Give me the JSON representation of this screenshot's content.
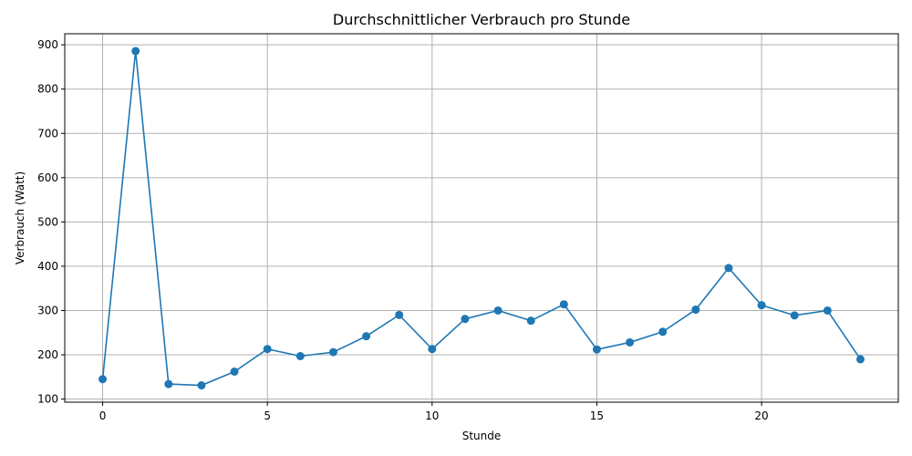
{
  "chart_data": {
    "type": "line",
    "title": "Durchschnittlicher Verbrauch pro Stunde",
    "xlabel": "Stunde",
    "ylabel": "Verbrauch (Watt)",
    "x": [
      0,
      1,
      2,
      3,
      4,
      5,
      6,
      7,
      8,
      9,
      10,
      11,
      12,
      13,
      14,
      15,
      16,
      17,
      18,
      19,
      20,
      21,
      22,
      23
    ],
    "series": [
      {
        "values": [
          145,
          886,
          134,
          131,
          162,
          213,
          197,
          206,
          242,
          290,
          213,
          281,
          300,
          277,
          314,
          212,
          228,
          252,
          302,
          396,
          312,
          289,
          300,
          190
        ],
        "color": "#1f77b4",
        "marker": "circle"
      }
    ],
    "xlim": [
      -1.15,
      24.15
    ],
    "ylim": [
      93,
      925
    ],
    "xticks": [
      0,
      5,
      10,
      15,
      20
    ],
    "yticks": [
      100,
      200,
      300,
      400,
      500,
      600,
      700,
      800,
      900
    ],
    "grid": true
  }
}
